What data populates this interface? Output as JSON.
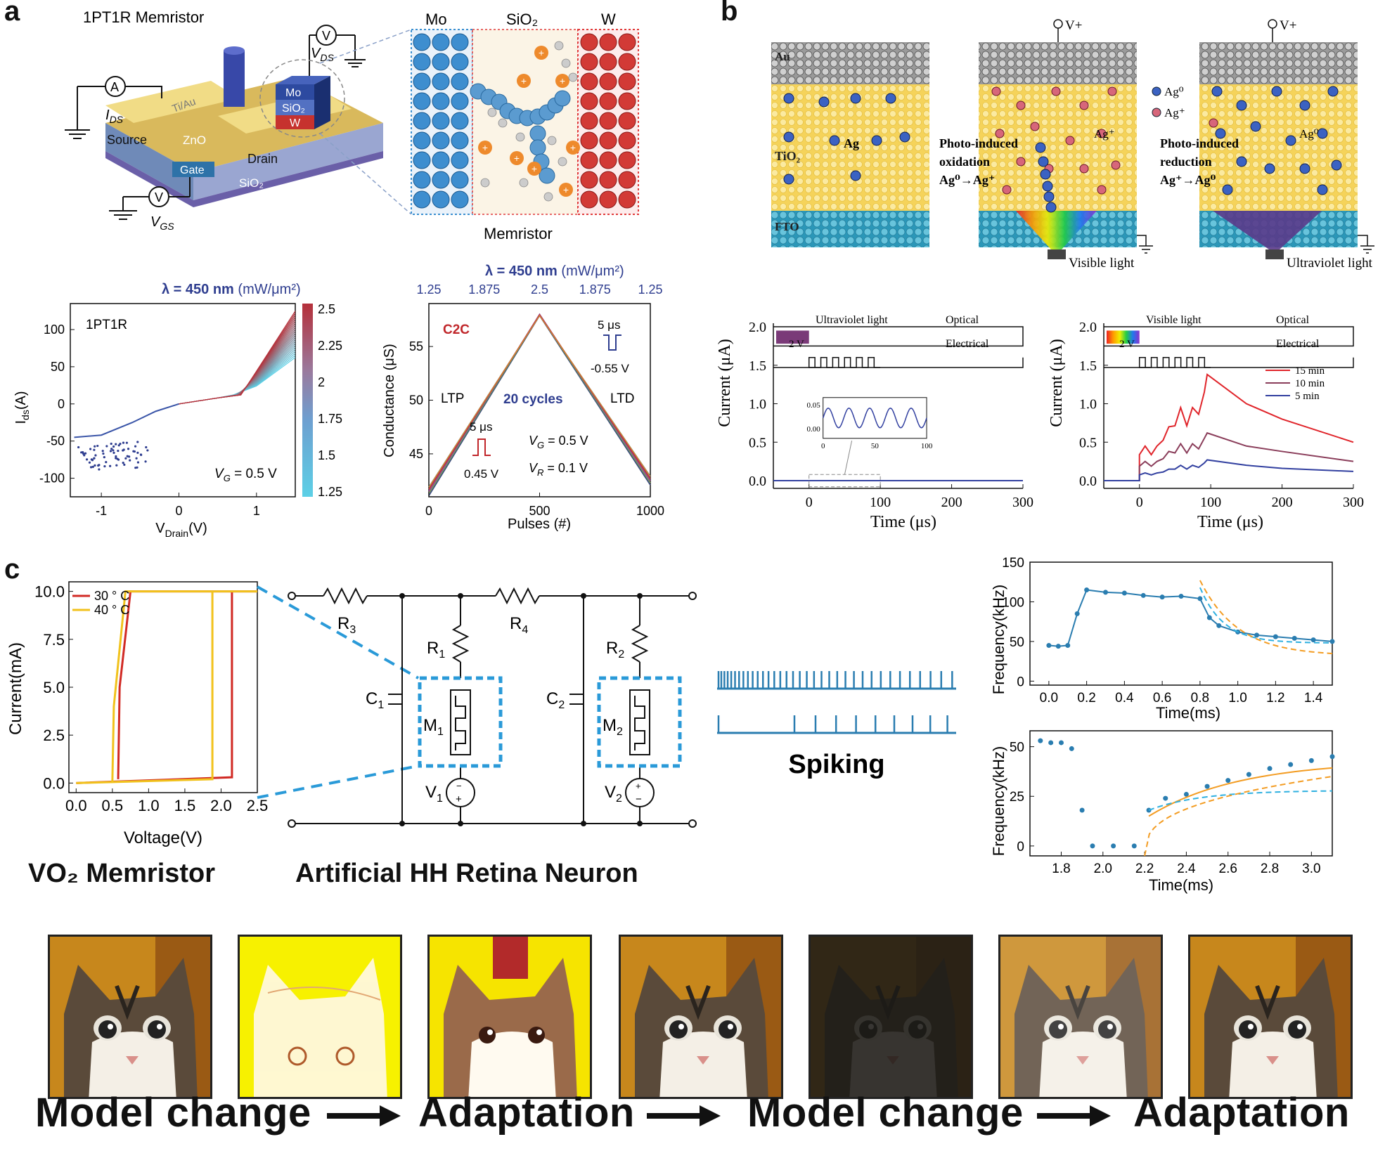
{
  "panels": {
    "a": {
      "letter": "a",
      "device_title": "1PT1R  Memristor",
      "device_labels": {
        "source": "Source",
        "drain": "Drain",
        "gate": "Gate",
        "zno": "ZnO",
        "sio2": "SiO₂",
        "tiau": "Ti/Au",
        "mo": "Mo",
        "sio2_stack": "SiO₂",
        "w": "W",
        "ids": "I",
        "ids_sub": "DS",
        "vds": "V",
        "vds_sub": "DS",
        "vgs": "V",
        "vgs_sub": "GS",
        "ammeter": "A",
        "voltmeter": "V"
      },
      "memristor_zoom": {
        "mo": "Mo",
        "sio2": "SiO₂",
        "w": "W",
        "caption": "Memristor"
      },
      "iv_chart": {
        "title_bold": "λ = 450 nm",
        "title_unit": "(mW/μm²)",
        "label": "1PT1R",
        "vg_note": "V",
        "vg_sub": "G",
        "vg_val": " = 0.5 V",
        "ylabel": "I",
        "ylabel_sub": "ds",
        "ylabel_unit": "(A)",
        "xlabel": "V",
        "xlabel_sub": "Drain",
        "xlabel_unit": "(V)",
        "xticks": [
          "-1",
          "0",
          "1"
        ],
        "yticks": [
          "100",
          "50",
          "0",
          "-50",
          "-100"
        ],
        "colorbar_ticks": [
          "2.5",
          "2.25",
          "2",
          "1.75",
          "1.5",
          "1.25"
        ]
      },
      "conductance_chart": {
        "title_bold": "λ = 450 nm",
        "title_unit": "(mW/μm²)",
        "top_ticks": [
          "1.25",
          "1.875",
          "2.5",
          "1.875",
          "1.25"
        ],
        "c2c": "C2C",
        "ltp": "LTP",
        "ltd": "LTD",
        "cycles": "20 cycles",
        "pulse_up_w": "5 μs",
        "pulse_up_v": "0.45 V",
        "pulse_dn_w": "5 μs",
        "pulse_dn_v": "-0.55 V",
        "vg": "V",
        "vg_sub": "G",
        "vg_val": " = 0.5 V",
        "vr": "V",
        "vr_sub": "R",
        "vr_val": " = 0.1 V",
        "ylabel": "Conductance (μS)",
        "xlabel": "Pulses (#)",
        "xticks": [
          "0",
          "500",
          "1000"
        ],
        "yticks": [
          "55",
          "50",
          "45"
        ]
      }
    },
    "b": {
      "letter": "b",
      "layers": {
        "au": "Au",
        "tio2": "TiO₂",
        "fto": "FTO",
        "ag": "Ag"
      },
      "vplus": "V+",
      "oxidation": [
        "Photo-induced",
        "oxidation",
        "Ag⁰→Ag⁺"
      ],
      "reduction": [
        "Photo-induced",
        "reduction",
        "Ag⁺→Ag⁰"
      ],
      "ag_plus": "Ag⁺",
      "ag_zero": "Ag⁰",
      "legend": [
        "Ag⁰",
        "Ag⁺"
      ],
      "visible_light": "Visible light",
      "uv_light": "Ultraviolet light",
      "chart_left": {
        "pulse_label": "Ultraviolet light",
        "optical": "Optical",
        "electrical": "Electrical",
        "v2": "2 V",
        "ylabel": "Current (μA)",
        "xlabel": "Time (μs)",
        "xticks": [
          "0",
          "100",
          "200",
          "300"
        ],
        "yticks": [
          "2.0",
          "1.5",
          "1.0",
          "0.5",
          "0.0"
        ],
        "inset_yticks": [
          "0.05",
          "0.00"
        ],
        "inset_xticks": [
          "0",
          "50",
          "100"
        ]
      },
      "chart_right": {
        "pulse_label": "Visible light",
        "optical": "Optical",
        "electrical": "Electrical",
        "v2": "2 V",
        "ylabel": "Current (μA)",
        "xlabel": "Time (μs)",
        "xticks": [
          "0",
          "100",
          "200",
          "300"
        ],
        "yticks": [
          "2.0",
          "1.5",
          "1.0",
          "0.5",
          "0.0"
        ],
        "legend": [
          "15 min",
          "10 min",
          "5 min"
        ]
      }
    },
    "c": {
      "letter": "c",
      "vo2_chart": {
        "legend": [
          "30 ° C",
          "40 ° C"
        ],
        "ylabel": "Current(mA)",
        "xlabel": "Voltage(V)",
        "xticks": [
          "0.0",
          "0.5",
          "1.0",
          "1.5",
          "2.0",
          "2.5"
        ],
        "yticks": [
          "10.0",
          "7.5",
          "5.0",
          "2.5",
          "0.0"
        ]
      },
      "circuit": {
        "r3": "R",
        "r3_sub": "3",
        "r4": "R",
        "r4_sub": "4",
        "r1": "R",
        "r1_sub": "1",
        "r2": "R",
        "r2_sub": "2",
        "c1": "C",
        "c1_sub": "1",
        "c2": "C",
        "c2_sub": "2",
        "m1": "M",
        "m1_sub": "1",
        "m2": "M",
        "m2_sub": "2",
        "v1": "V",
        "v1_sub": "1",
        "v2": "V",
        "v2_sub": "2"
      },
      "spiking": "Spiking",
      "caption_left": "VO₂ Memristor",
      "caption_right": "Artificial HH Retina Neuron",
      "freq_top": {
        "ylabel": "Frequency(kHz)",
        "xlabel": "Time(ms)",
        "xticks": [
          "0.0",
          "0.2",
          "0.4",
          "0.6",
          "0.8",
          "1.0",
          "1.2",
          "1.4"
        ],
        "yticks": [
          "150",
          "100",
          "50",
          "0"
        ]
      },
      "freq_bottom": {
        "ylabel": "Frequency(kHz)",
        "xlabel": "Time(ms)",
        "xticks": [
          "1.8",
          "2.0",
          "2.2",
          "2.4",
          "2.6",
          "2.8",
          "3.0"
        ],
        "yticks": [
          "50",
          "25",
          "0"
        ]
      }
    }
  },
  "flow": {
    "step1": "Model change",
    "step2": "Adaptation",
    "step3": "Model change",
    "step4": "Adaptation"
  },
  "chart_data": [
    {
      "type": "line",
      "id": "a-iv",
      "x": [
        -1.3,
        -1,
        -0.5,
        0,
        0.5,
        0.8,
        1.0,
        1.2,
        1.5
      ],
      "series": [
        {
          "values": [
            -50,
            -45,
            -30,
            0,
            10,
            14,
            40,
            80,
            125
          ]
        }
      ],
      "xlim": [
        -1.4,
        1.5
      ],
      "ylim": [
        -125,
        135
      ]
    },
    {
      "type": "line",
      "id": "a-conductance",
      "x": [
        0,
        500,
        1000
      ],
      "series": [
        {
          "values": [
            41.5,
            58,
            42.5
          ]
        }
      ],
      "xlim": [
        0,
        1000
      ],
      "ylim": [
        41,
        59
      ]
    },
    {
      "type": "line",
      "id": "b-left",
      "x": [
        -50,
        0,
        100,
        300
      ],
      "series": [
        {
          "values": [
            0,
            0,
            0,
            0
          ]
        }
      ],
      "xlim": [
        -50,
        300
      ],
      "ylim": [
        -0.1,
        2.0
      ]
    },
    {
      "type": "line",
      "id": "b-right",
      "x": [
        -50,
        0,
        20,
        40,
        60,
        80,
        95,
        150,
        200,
        300
      ],
      "series": [
        {
          "name": "15 min",
          "values": [
            0,
            0,
            0.45,
            0.7,
            0.95,
            1.15,
            1.38,
            1.0,
            0.8,
            0.5
          ]
        },
        {
          "name": "10 min",
          "values": [
            0,
            0,
            0.25,
            0.38,
            0.48,
            0.55,
            0.62,
            0.45,
            0.38,
            0.25
          ]
        },
        {
          "name": "5 min",
          "values": [
            0,
            0,
            0.1,
            0.15,
            0.2,
            0.23,
            0.27,
            0.2,
            0.16,
            0.12
          ]
        }
      ],
      "xlim": [
        -50,
        300
      ],
      "ylim": [
        -0.1,
        2.0
      ]
    },
    {
      "type": "line",
      "id": "c-vo2",
      "series": [
        {
          "name": "30 ° C"
        },
        {
          "name": "40 ° C"
        }
      ],
      "xlim": [
        -0.1,
        2.5
      ],
      "ylim": [
        -0.5,
        10.5
      ]
    },
    {
      "type": "scatter",
      "id": "c-freq-top",
      "x": [
        0.0,
        0.05,
        0.1,
        0.15,
        0.2,
        0.3,
        0.4,
        0.5,
        0.6,
        0.7,
        0.8,
        0.85,
        0.9,
        1.0,
        1.1,
        1.2,
        1.3,
        1.4,
        1.5
      ],
      "series": [
        {
          "values": [
            45,
            44,
            45,
            85,
            115,
            112,
            111,
            108,
            106,
            107,
            104,
            80,
            70,
            62,
            58,
            56,
            54,
            52,
            50
          ]
        }
      ],
      "xlim": [
        -0.1,
        1.5
      ],
      "ylim": [
        -5,
        150
      ]
    },
    {
      "type": "scatter",
      "id": "c-freq-bottom",
      "x": [
        1.7,
        1.75,
        1.8,
        1.85,
        1.9,
        1.95,
        2.05,
        2.15,
        2.22,
        2.3,
        2.4,
        2.5,
        2.6,
        2.7,
        2.8,
        2.9,
        3.0,
        3.1
      ],
      "series": [
        {
          "values": [
            53,
            52,
            52,
            49,
            18,
            0,
            0,
            0,
            18,
            24,
            26,
            30,
            33,
            36,
            39,
            41,
            43,
            45
          ]
        }
      ],
      "xlim": [
        1.65,
        3.1
      ],
      "ylim": [
        -5,
        58
      ]
    }
  ]
}
